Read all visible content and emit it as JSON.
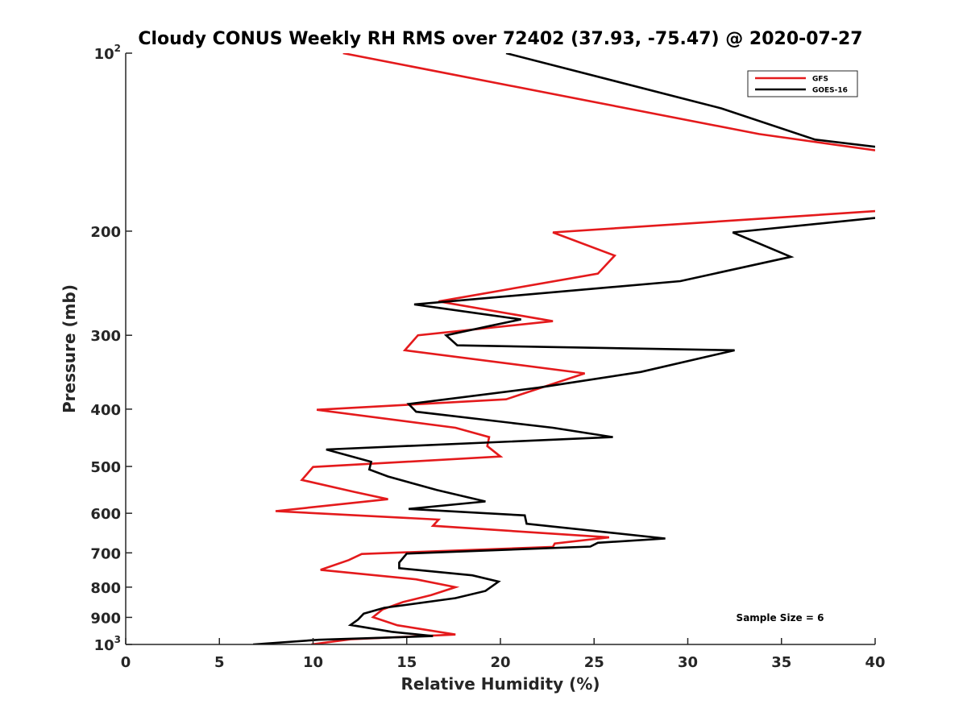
{
  "chart_data": {
    "type": "line",
    "title": "Cloudy CONUS Weekly RH RMS over 72402 (37.93, -75.47) @ 2020-07-27",
    "xlabel": "Relative Humidity (%)",
    "ylabel": "Pressure (mb)",
    "xlim": [
      0,
      40
    ],
    "ylim": [
      100,
      1000
    ],
    "y_scale": "log",
    "y_reversed": true,
    "x_ticks": [
      0,
      5,
      10,
      15,
      20,
      25,
      30,
      35,
      40
    ],
    "y_ticks": [
      {
        "value": 100,
        "base": "10",
        "exp": "2"
      },
      {
        "value": 200,
        "label": "200"
      },
      {
        "value": 300,
        "label": "300"
      },
      {
        "value": 400,
        "label": "400"
      },
      {
        "value": 500,
        "label": "500"
      },
      {
        "value": 600,
        "label": "600"
      },
      {
        "value": 700,
        "label": "700"
      },
      {
        "value": 800,
        "label": "800"
      },
      {
        "value": 900,
        "label": "900"
      },
      {
        "value": 1000,
        "base": "10",
        "exp": "3"
      }
    ],
    "grid": false,
    "legend_position": "top-right",
    "annotation": "Sample Size = 6",
    "series": [
      {
        "name": "GFS",
        "color": "#e41a1c",
        "segments": [
          [
            [
              11.6,
              100
            ],
            [
              33.8,
              137
            ],
            [
              40,
              146
            ]
          ],
          [
            [
              40,
              185
            ],
            [
              22.8,
              201
            ],
            [
              26.1,
              220
            ],
            [
              25.2,
              236
            ],
            [
              16.7,
              263
            ],
            [
              22.8,
              284
            ],
            [
              15.6,
              300
            ],
            [
              14.9,
              318
            ],
            [
              24.5,
              348
            ],
            [
              20.3,
              385
            ],
            [
              10.2,
              401
            ],
            [
              17.6,
              430
            ],
            [
              19.4,
              446
            ],
            [
              19.3,
              462
            ],
            [
              20.0,
              481
            ],
            [
              10.0,
              501
            ],
            [
              9.4,
              527
            ],
            [
              12.2,
              552
            ],
            [
              14.0,
              568
            ],
            [
              8.0,
              595
            ],
            [
              16.7,
              615
            ],
            [
              16.4,
              630
            ],
            [
              25.8,
              659
            ],
            [
              22.9,
              675
            ],
            [
              22.8,
              684
            ],
            [
              12.6,
              703
            ],
            [
              11.9,
              720
            ],
            [
              10.4,
              748
            ],
            [
              15.5,
              776
            ],
            [
              17.6,
              800
            ],
            [
              16.3,
              825
            ],
            [
              14.8,
              848
            ],
            [
              13.7,
              873
            ],
            [
              13.2,
              899
            ],
            [
              14.5,
              928
            ],
            [
              17.6,
              962
            ],
            [
              12.0,
              980
            ],
            [
              9.9,
              1000
            ]
          ]
        ]
      },
      {
        "name": "GOES-16",
        "color": "#000000",
        "segments": [
          [
            [
              20.3,
              100
            ],
            [
              31.8,
              124
            ],
            [
              36.8,
              140
            ],
            [
              40,
              144
            ]
          ],
          [
            [
              40,
              190
            ],
            [
              32.4,
              201
            ],
            [
              35.5,
              221
            ],
            [
              29.6,
              243
            ],
            [
              15.4,
              266
            ],
            [
              21.1,
              282
            ],
            [
              19.5,
              289
            ],
            [
              17.1,
              300
            ],
            [
              17.7,
              312
            ],
            [
              32.5,
              318
            ],
            [
              27.5,
              346
            ],
            [
              22.0,
              368
            ],
            [
              15.1,
              392
            ],
            [
              15.5,
              404
            ],
            [
              22.8,
              430
            ],
            [
              26.0,
              446
            ],
            [
              10.7,
              468
            ],
            [
              13.1,
              491
            ],
            [
              13.0,
              506
            ],
            [
              14.0,
              520
            ],
            [
              16.6,
              548
            ],
            [
              19.2,
              573
            ],
            [
              15.1,
              590
            ],
            [
              21.3,
              605
            ],
            [
              21.4,
              625
            ],
            [
              28.8,
              662
            ],
            [
              25.2,
              673
            ],
            [
              24.8,
              683
            ],
            [
              15.0,
              702
            ],
            [
              14.6,
              727
            ],
            [
              14.6,
              743
            ],
            [
              18.5,
              764
            ],
            [
              19.9,
              783
            ],
            [
              19.2,
              812
            ],
            [
              17.6,
              835
            ],
            [
              13.8,
              867
            ],
            [
              12.7,
              887
            ],
            [
              12.4,
              908
            ],
            [
              12.0,
              927
            ],
            [
              14.2,
              952
            ],
            [
              16.4,
              968
            ],
            [
              10.3,
              982
            ],
            [
              6.8,
              1000
            ]
          ]
        ]
      }
    ]
  }
}
